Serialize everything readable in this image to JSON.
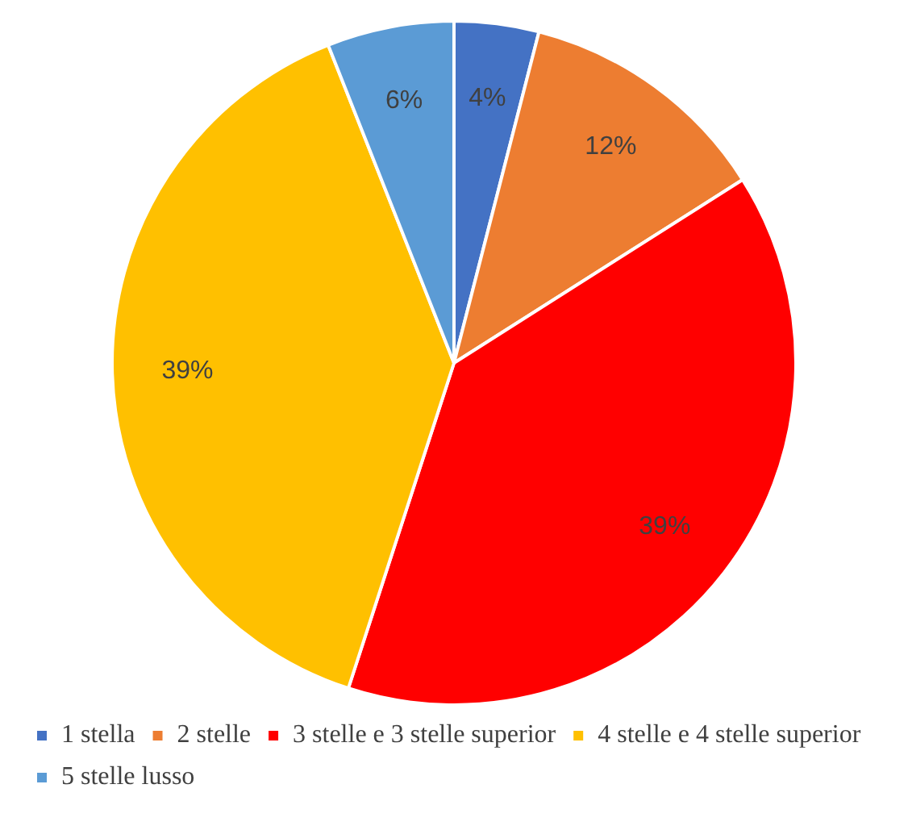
{
  "chart_data": {
    "type": "pie",
    "categories": [
      "1 stella",
      "2 stelle",
      "3 stelle e 3 stelle superior",
      "4 stelle e 4 stelle superior",
      "5 stelle lusso"
    ],
    "values": [
      4,
      12,
      39,
      39,
      6
    ],
    "colors": [
      "#4472c4",
      "#ed7d31",
      "#ff0000",
      "#ffc000",
      "#5b9bd5"
    ],
    "value_labels": [
      "4%",
      "12%",
      "39%",
      "39%",
      "6%"
    ],
    "legend": "bottom"
  }
}
